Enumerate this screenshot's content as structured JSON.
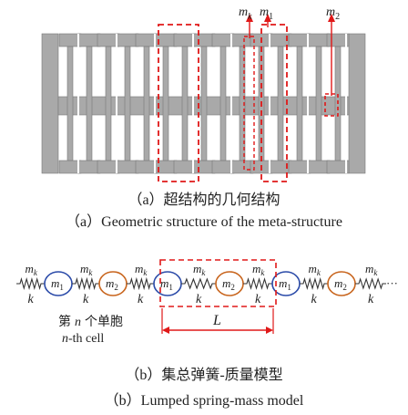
{
  "top": {
    "labels": {
      "mk": "m",
      "mk_sub": "k",
      "m1": "m",
      "m1_sub": "1",
      "m2": "m",
      "m2_sub": "2"
    }
  },
  "captions": {
    "a_cn": "（a）超结构的几何结构",
    "a_en": "（a）Geometric structure of the meta-structure",
    "b_cn": "（b）集总弹簧-质量模型",
    "b_en": "（b）Lumped spring-mass model"
  },
  "chain": {
    "spring_m": "m",
    "spring_sub": "k",
    "spring_k": "k",
    "mass1_sub": "1",
    "mass2_sub": "2",
    "cell_cn_pre": "第",
    "cell_cn_n": "n",
    "cell_cn_post": "个单胞",
    "cell_en_n": "n",
    "cell_en_post": "-th cell",
    "L": "L",
    "dots": "···"
  },
  "colors": {
    "gray": "#a9a9a9",
    "red": "#e01818",
    "blue": "#2a4aa8",
    "orange": "#c8641c",
    "spring": "#333333"
  }
}
